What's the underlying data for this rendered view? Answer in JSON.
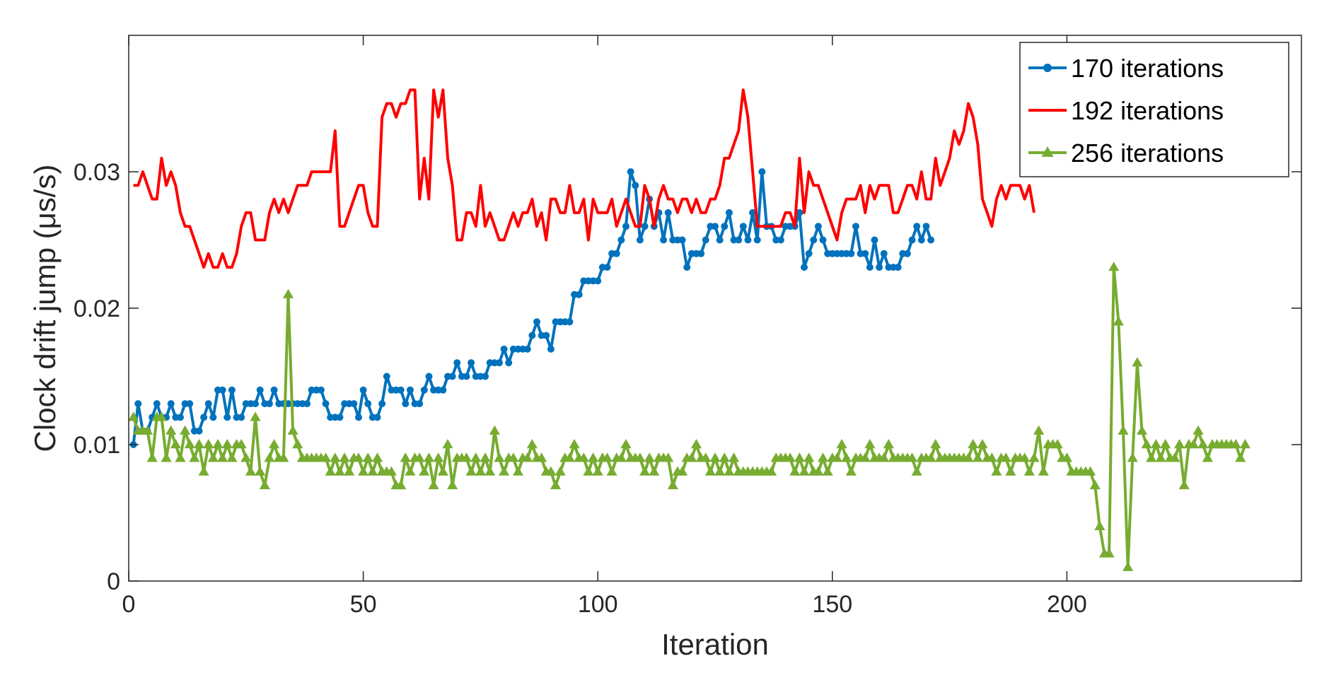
{
  "chart_data": {
    "type": "line",
    "xlabel": "Iteration",
    "ylabel": "Clock drift jump (μs/s)",
    "xlim": [
      0,
      250
    ],
    "ylim": [
      0,
      0.04
    ],
    "x_ticks": [
      {
        "value": 0,
        "label": "0"
      },
      {
        "value": 50,
        "label": "50"
      },
      {
        "value": 100,
        "label": "100"
      },
      {
        "value": 150,
        "label": "150"
      },
      {
        "value": 200,
        "label": "200"
      }
    ],
    "y_ticks": [
      {
        "value": 0,
        "label": "0"
      },
      {
        "value": 0.01,
        "label": "0.01"
      },
      {
        "value": 0.02,
        "label": "0.02"
      },
      {
        "value": 0.03,
        "label": "0.03"
      }
    ],
    "grid": false,
    "legend_position": "top-right",
    "series": [
      {
        "name": "170 iterations",
        "color": "#0072BD",
        "marker": "circle",
        "values": [
          0.01,
          0.013,
          0.011,
          0.011,
          0.012,
          0.013,
          0.012,
          0.012,
          0.013,
          0.012,
          0.012,
          0.013,
          0.013,
          0.011,
          0.011,
          0.012,
          0.013,
          0.012,
          0.014,
          0.014,
          0.012,
          0.014,
          0.012,
          0.012,
          0.013,
          0.013,
          0.013,
          0.014,
          0.013,
          0.013,
          0.014,
          0.013,
          0.013,
          0.013,
          0.013,
          0.013,
          0.013,
          0.013,
          0.014,
          0.014,
          0.014,
          0.013,
          0.012,
          0.012,
          0.012,
          0.013,
          0.013,
          0.013,
          0.012,
          0.014,
          0.013,
          0.012,
          0.012,
          0.013,
          0.015,
          0.014,
          0.014,
          0.014,
          0.013,
          0.014,
          0.013,
          0.013,
          0.014,
          0.015,
          0.014,
          0.014,
          0.014,
          0.015,
          0.015,
          0.016,
          0.015,
          0.015,
          0.016,
          0.015,
          0.015,
          0.015,
          0.016,
          0.016,
          0.016,
          0.017,
          0.016,
          0.017,
          0.017,
          0.017,
          0.017,
          0.018,
          0.019,
          0.018,
          0.018,
          0.017,
          0.019,
          0.019,
          0.019,
          0.019,
          0.021,
          0.021,
          0.022,
          0.022,
          0.022,
          0.022,
          0.023,
          0.023,
          0.024,
          0.024,
          0.025,
          0.026,
          0.03,
          0.029,
          0.025,
          0.026,
          0.028,
          0.026,
          0.027,
          0.025,
          0.027,
          0.025,
          0.025,
          0.025,
          0.023,
          0.024,
          0.024,
          0.024,
          0.025,
          0.026,
          0.026,
          0.025,
          0.026,
          0.027,
          0.025,
          0.025,
          0.026,
          0.025,
          0.027,
          0.025,
          0.03,
          0.026,
          0.026,
          0.025,
          0.025,
          0.026,
          0.026,
          0.026,
          0.027,
          0.023,
          0.024,
          0.025,
          0.026,
          0.025,
          0.024,
          0.024,
          0.024,
          0.024,
          0.024,
          0.024,
          0.026,
          0.024,
          0.024,
          0.023,
          0.025,
          0.023,
          0.024,
          0.023,
          0.023,
          0.023,
          0.024,
          0.024,
          0.025,
          0.026,
          0.025,
          0.026,
          0.025
        ]
      },
      {
        "name": "192 iterations",
        "color": "#FF0000",
        "marker": "none",
        "values": [
          0.029,
          0.029,
          0.03,
          0.029,
          0.028,
          0.028,
          0.031,
          0.029,
          0.03,
          0.029,
          0.027,
          0.026,
          0.026,
          0.025,
          0.024,
          0.023,
          0.024,
          0.023,
          0.023,
          0.024,
          0.023,
          0.023,
          0.024,
          0.026,
          0.027,
          0.027,
          0.025,
          0.025,
          0.025,
          0.027,
          0.028,
          0.027,
          0.028,
          0.027,
          0.028,
          0.029,
          0.029,
          0.029,
          0.03,
          0.03,
          0.03,
          0.03,
          0.03,
          0.033,
          0.026,
          0.026,
          0.027,
          0.028,
          0.029,
          0.029,
          0.027,
          0.026,
          0.026,
          0.034,
          0.035,
          0.035,
          0.034,
          0.035,
          0.035,
          0.036,
          0.036,
          0.028,
          0.031,
          0.028,
          0.036,
          0.034,
          0.036,
          0.031,
          0.029,
          0.025,
          0.025,
          0.027,
          0.027,
          0.026,
          0.029,
          0.026,
          0.027,
          0.026,
          0.025,
          0.025,
          0.026,
          0.027,
          0.026,
          0.027,
          0.027,
          0.028,
          0.026,
          0.027,
          0.025,
          0.028,
          0.028,
          0.027,
          0.027,
          0.029,
          0.027,
          0.027,
          0.028,
          0.025,
          0.028,
          0.027,
          0.027,
          0.027,
          0.028,
          0.026,
          0.027,
          0.028,
          0.027,
          0.026,
          0.026,
          0.029,
          0.028,
          0.026,
          0.028,
          0.029,
          0.028,
          0.028,
          0.027,
          0.028,
          0.028,
          0.027,
          0.028,
          0.027,
          0.027,
          0.028,
          0.028,
          0.029,
          0.031,
          0.031,
          0.032,
          0.033,
          0.036,
          0.034,
          0.03,
          0.026,
          0.026,
          0.026,
          0.026,
          0.026,
          0.026,
          0.027,
          0.027,
          0.026,
          0.031,
          0.027,
          0.03,
          0.029,
          0.029,
          0.028,
          0.027,
          0.026,
          0.025,
          0.027,
          0.028,
          0.028,
          0.028,
          0.029,
          0.027,
          0.029,
          0.028,
          0.029,
          0.029,
          0.029,
          0.027,
          0.027,
          0.028,
          0.029,
          0.029,
          0.028,
          0.03,
          0.028,
          0.028,
          0.031,
          0.029,
          0.03,
          0.031,
          0.033,
          0.032,
          0.033,
          0.035,
          0.034,
          0.032,
          0.028,
          0.027,
          0.026,
          0.028,
          0.029,
          0.028,
          0.029,
          0.029,
          0.029,
          0.028,
          0.029,
          0.027
        ]
      },
      {
        "name": "256 iterations",
        "color": "#77AC30",
        "marker": "triangle",
        "values": [
          0.012,
          0.011,
          0.011,
          0.011,
          0.009,
          0.012,
          0.012,
          0.009,
          0.011,
          0.01,
          0.009,
          0.011,
          0.01,
          0.009,
          0.01,
          0.008,
          0.01,
          0.009,
          0.01,
          0.009,
          0.01,
          0.009,
          0.01,
          0.01,
          0.009,
          0.008,
          0.012,
          0.008,
          0.007,
          0.009,
          0.01,
          0.009,
          0.009,
          0.021,
          0.011,
          0.01,
          0.009,
          0.009,
          0.009,
          0.009,
          0.009,
          0.009,
          0.008,
          0.009,
          0.008,
          0.009,
          0.008,
          0.009,
          0.009,
          0.008,
          0.009,
          0.008,
          0.009,
          0.008,
          0.008,
          0.008,
          0.007,
          0.007,
          0.009,
          0.008,
          0.009,
          0.009,
          0.008,
          0.009,
          0.007,
          0.009,
          0.008,
          0.01,
          0.007,
          0.009,
          0.009,
          0.009,
          0.008,
          0.009,
          0.008,
          0.009,
          0.008,
          0.011,
          0.009,
          0.008,
          0.009,
          0.009,
          0.008,
          0.009,
          0.009,
          0.01,
          0.009,
          0.009,
          0.008,
          0.008,
          0.007,
          0.008,
          0.009,
          0.009,
          0.01,
          0.009,
          0.009,
          0.008,
          0.009,
          0.008,
          0.009,
          0.009,
          0.008,
          0.009,
          0.009,
          0.01,
          0.009,
          0.009,
          0.009,
          0.008,
          0.009,
          0.008,
          0.009,
          0.009,
          0.009,
          0.007,
          0.008,
          0.008,
          0.009,
          0.009,
          0.01,
          0.009,
          0.009,
          0.008,
          0.009,
          0.008,
          0.009,
          0.008,
          0.009,
          0.008,
          0.008,
          0.008,
          0.008,
          0.008,
          0.008,
          0.008,
          0.008,
          0.009,
          0.009,
          0.009,
          0.009,
          0.008,
          0.009,
          0.008,
          0.009,
          0.008,
          0.008,
          0.009,
          0.008,
          0.009,
          0.009,
          0.01,
          0.009,
          0.008,
          0.009,
          0.009,
          0.009,
          0.01,
          0.009,
          0.009,
          0.009,
          0.01,
          0.009,
          0.009,
          0.009,
          0.009,
          0.009,
          0.008,
          0.009,
          0.009,
          0.009,
          0.01,
          0.009,
          0.009,
          0.009,
          0.009,
          0.009,
          0.009,
          0.009,
          0.01,
          0.009,
          0.01,
          0.009,
          0.009,
          0.008,
          0.009,
          0.009,
          0.008,
          0.009,
          0.009,
          0.009,
          0.008,
          0.009,
          0.011,
          0.008,
          0.01,
          0.01,
          0.01,
          0.009,
          0.009,
          0.008,
          0.008,
          0.008,
          0.008,
          0.008,
          0.007,
          0.004,
          0.002,
          0.002,
          0.023,
          0.019,
          0.011,
          0.001,
          0.009,
          0.016,
          0.011,
          0.01,
          0.009,
          0.01,
          0.009,
          0.01,
          0.009,
          0.009,
          0.01,
          0.007,
          0.01,
          0.01,
          0.011,
          0.01,
          0.009,
          0.01,
          0.01,
          0.01,
          0.01,
          0.01,
          0.01,
          0.009,
          0.01
        ]
      }
    ]
  }
}
